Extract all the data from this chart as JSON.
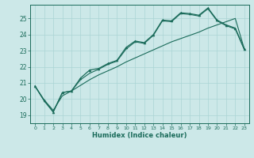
{
  "xlabel": "Humidex (Indice chaleur)",
  "ylabel": "",
  "background_color": "#cce8e8",
  "line_color": "#1a6b5a",
  "grid_color": "#aad4d4",
  "xlim": [
    -0.5,
    23.5
  ],
  "ylim": [
    18.5,
    25.85
  ],
  "yticks": [
    19,
    20,
    21,
    22,
    23,
    24,
    25
  ],
  "xticks": [
    0,
    1,
    2,
    3,
    4,
    5,
    6,
    7,
    8,
    9,
    10,
    11,
    12,
    13,
    14,
    15,
    16,
    17,
    18,
    19,
    20,
    21,
    22,
    23
  ],
  "series1": [
    20.8,
    19.9,
    19.2,
    20.4,
    20.5,
    21.3,
    21.8,
    21.9,
    22.2,
    22.4,
    23.2,
    23.6,
    23.5,
    24.0,
    24.9,
    24.85,
    25.35,
    25.3,
    25.2,
    25.65,
    24.9,
    24.6,
    24.4,
    23.1
  ],
  "series2": [
    20.8,
    19.9,
    19.2,
    20.4,
    20.5,
    21.2,
    21.6,
    21.85,
    22.15,
    22.35,
    23.1,
    23.55,
    23.45,
    23.95,
    24.85,
    24.8,
    25.3,
    25.25,
    25.15,
    25.6,
    24.85,
    24.55,
    24.35,
    23.05
  ],
  "series3": [
    20.8,
    19.95,
    19.3,
    20.2,
    20.5,
    20.85,
    21.2,
    21.5,
    21.75,
    22.0,
    22.3,
    22.55,
    22.8,
    23.05,
    23.3,
    23.55,
    23.75,
    23.95,
    24.15,
    24.4,
    24.6,
    24.8,
    25.0,
    23.1
  ]
}
